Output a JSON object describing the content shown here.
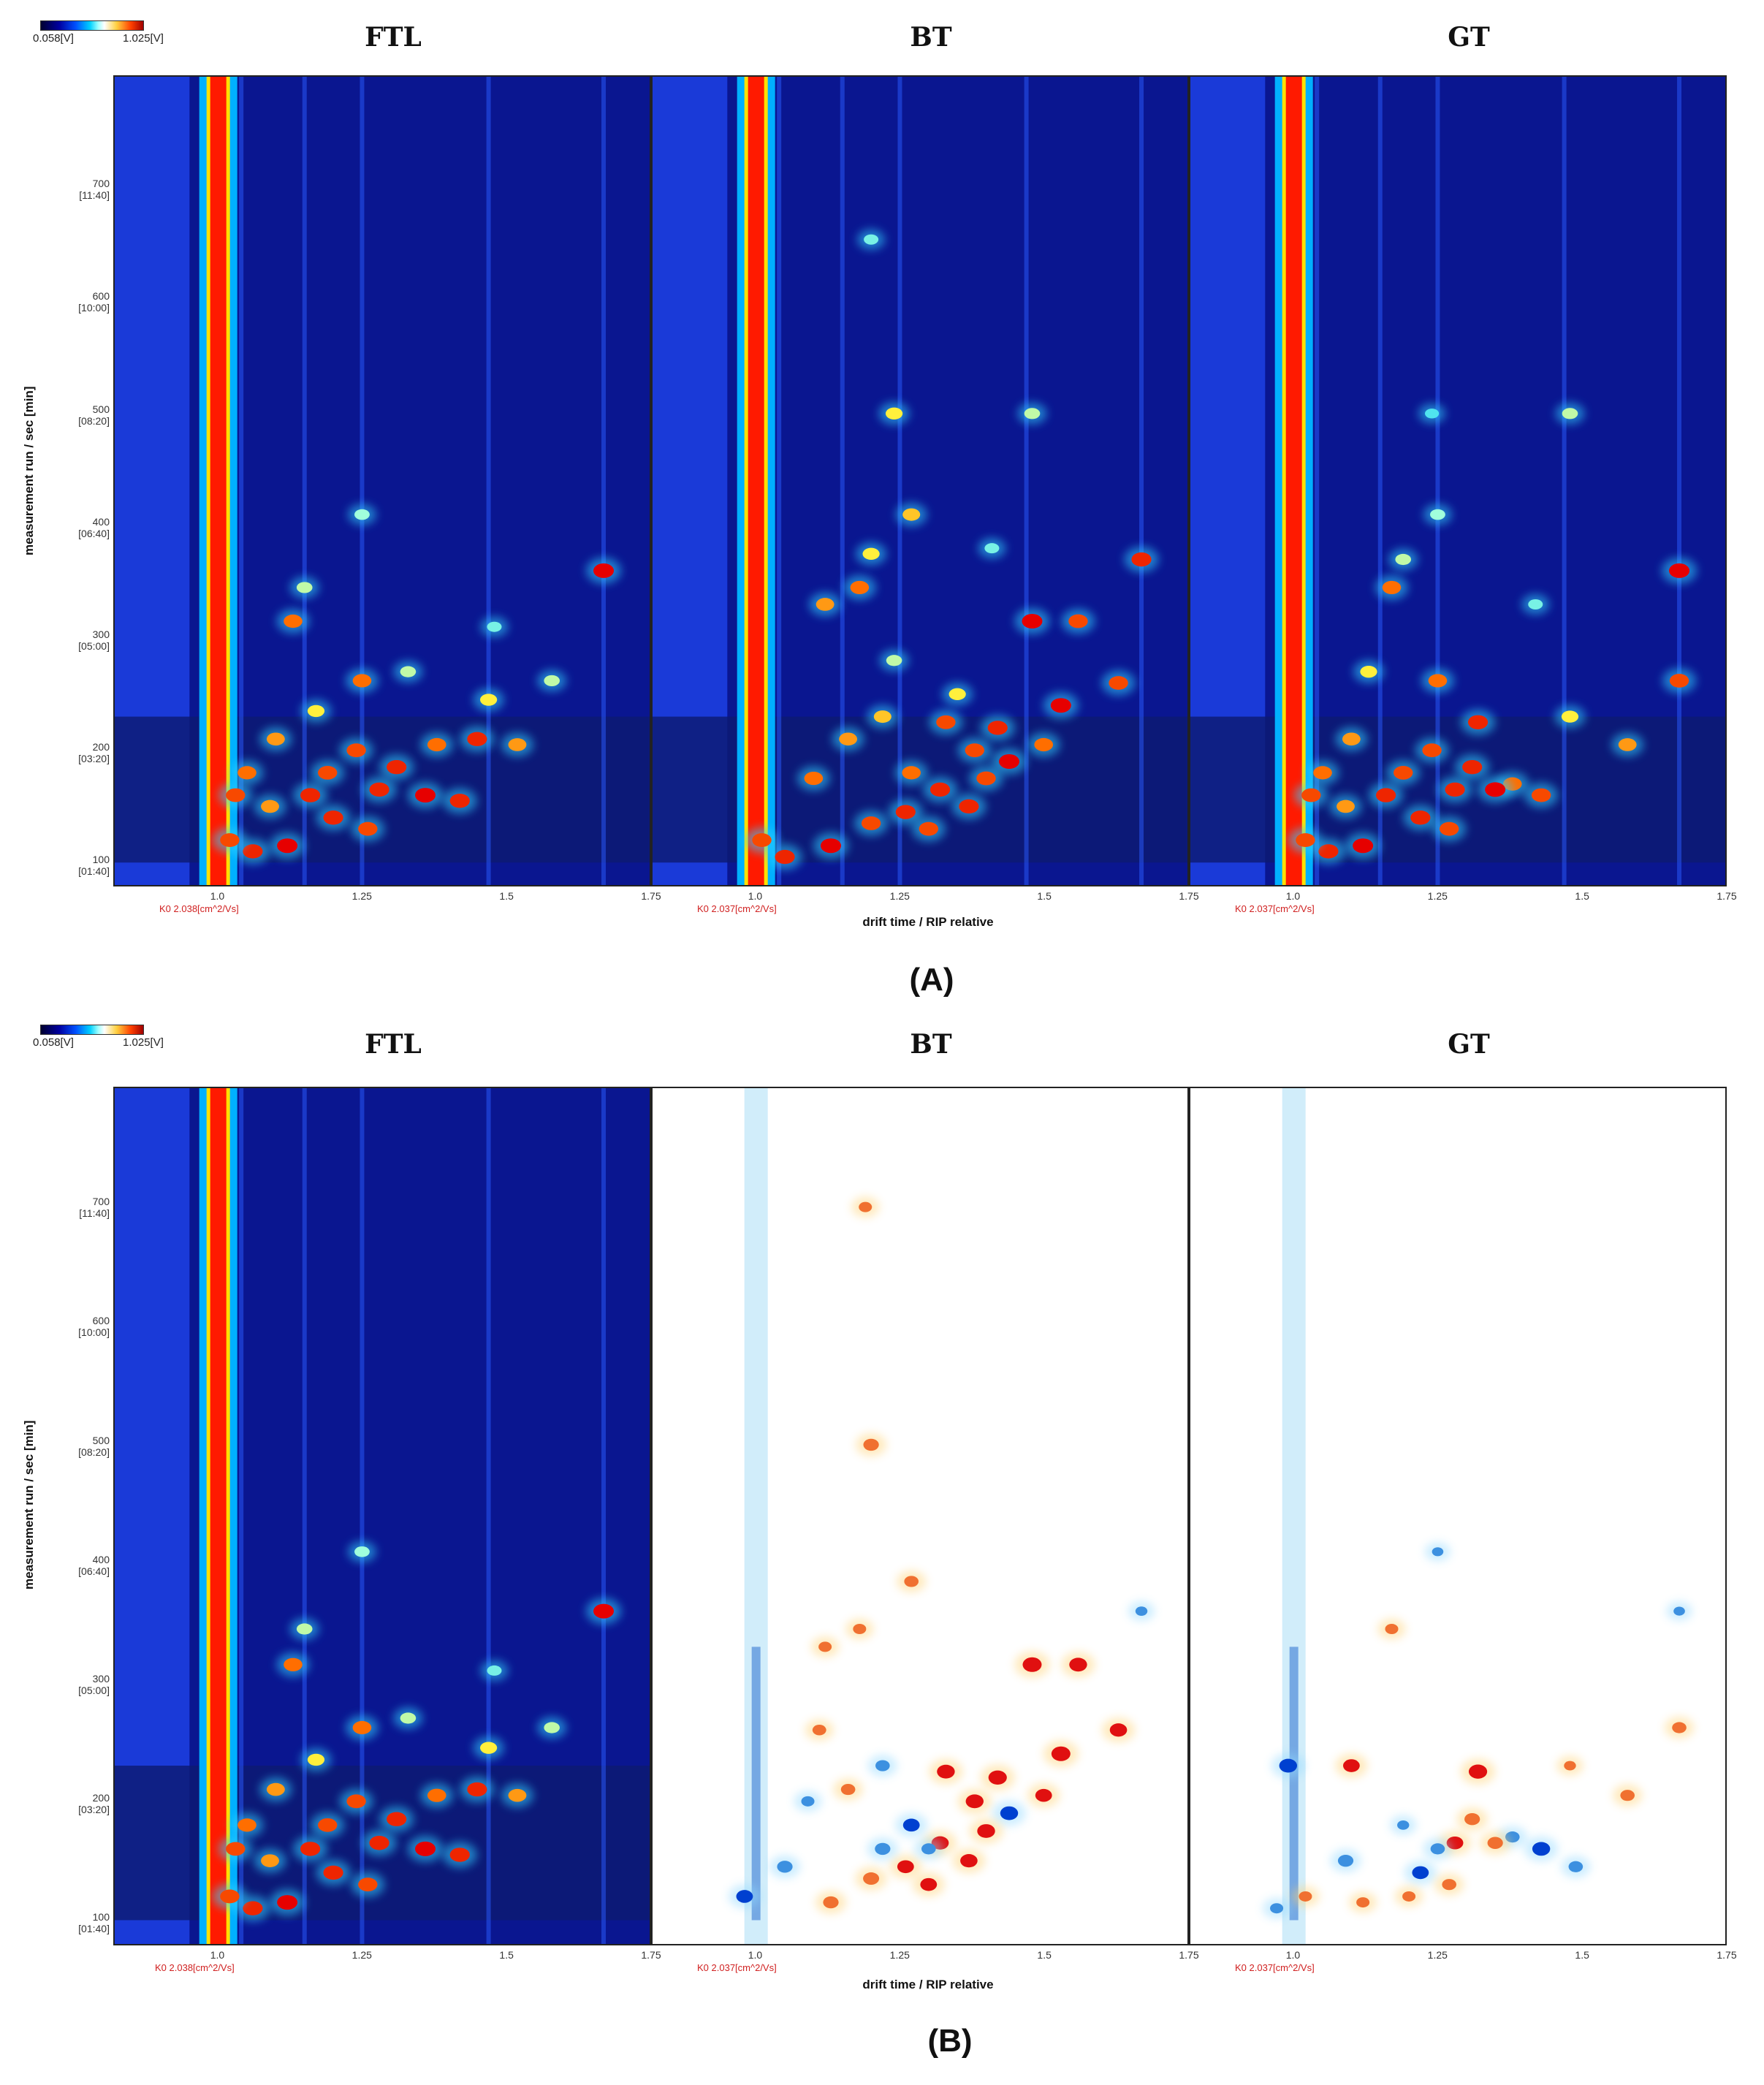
{
  "colorbar": {
    "min_label": "0.058[V]",
    "max_label": "1.025[V]"
  },
  "figures": [
    {
      "label": "(A)",
      "mode": "spectrum",
      "panels": [
        {
          "title": "FTL",
          "ko_label": "K0 2.038[cm^2/Vs]"
        },
        {
          "title": "BT",
          "ko_label": "K0 2.037[cm^2/Vs]"
        },
        {
          "title": "GT",
          "ko_label": "K0 2.037[cm^2/Vs]"
        }
      ]
    },
    {
      "label": "(B)",
      "mode": "difference",
      "panels": [
        {
          "title": "FTL",
          "ko_label": "K0 2.038[cm^2/Vs]"
        },
        {
          "title": "BT",
          "ko_label": "K0 2.037[cm^2/Vs]"
        },
        {
          "title": "GT",
          "ko_label": "K0 2.037[cm^2/Vs]"
        }
      ]
    }
  ],
  "chart_data": {
    "type": "heatmap",
    "xlabel": "drift time / RIP relative",
    "ylabel": "measurement run / sec [min]",
    "xlim": [
      0.82,
      1.75
    ],
    "ylim": [
      80,
      800
    ],
    "x_ticks": [
      "1.0",
      "1.25",
      "1.5",
      "1.75"
    ],
    "y_ticks": [
      {
        "value": 100,
        "label": "100",
        "sub": "[01:40]"
      },
      {
        "value": 200,
        "label": "200",
        "sub": "[03:20]"
      },
      {
        "value": 300,
        "label": "300",
        "sub": "[05:00]"
      },
      {
        "value": 400,
        "label": "400",
        "sub": "[06:40]"
      },
      {
        "value": 500,
        "label": "500",
        "sub": "[08:20]"
      },
      {
        "value": 600,
        "label": "600",
        "sub": "[10:00]"
      },
      {
        "value": 700,
        "label": "700",
        "sub": "[11:40]"
      }
    ],
    "rip_position": 1.0,
    "peaks": {
      "FTL": [
        [
          1.13,
          315,
          0.85
        ],
        [
          1.15,
          345,
          0.6
        ],
        [
          1.25,
          410,
          0.55
        ],
        [
          1.25,
          262,
          0.85
        ],
        [
          1.24,
          200,
          0.9
        ],
        [
          1.19,
          180,
          0.9
        ],
        [
          1.31,
          185,
          0.95
        ],
        [
          1.38,
          205,
          0.85
        ],
        [
          1.45,
          210,
          0.95
        ],
        [
          1.52,
          205,
          0.8
        ],
        [
          1.58,
          262,
          0.6
        ],
        [
          1.67,
          360,
          1.0
        ],
        [
          1.47,
          245,
          0.7
        ],
        [
          1.28,
          165,
          0.95
        ],
        [
          1.36,
          160,
          1.0
        ],
        [
          1.42,
          155,
          0.95
        ],
        [
          1.2,
          140,
          0.95
        ],
        [
          1.26,
          130,
          0.9
        ],
        [
          1.12,
          115,
          1.0
        ],
        [
          1.06,
          110,
          0.95
        ],
        [
          1.02,
          120,
          0.9
        ],
        [
          1.09,
          150,
          0.8
        ],
        [
          1.05,
          180,
          0.85
        ],
        [
          1.1,
          210,
          0.8
        ],
        [
          1.17,
          235,
          0.7
        ],
        [
          1.33,
          270,
          0.6
        ],
        [
          1.48,
          310,
          0.5
        ],
        [
          1.03,
          160,
          0.9
        ],
        [
          1.16,
          160,
          0.95
        ]
      ],
      "BT": [
        [
          1.27,
          410,
          0.75
        ],
        [
          1.24,
          500,
          0.7
        ],
        [
          1.48,
          500,
          0.6
        ],
        [
          1.67,
          370,
          0.95
        ],
        [
          1.2,
          375,
          0.7
        ],
        [
          1.18,
          345,
          0.85
        ],
        [
          1.12,
          330,
          0.8
        ],
        [
          1.48,
          315,
          1.0
        ],
        [
          1.56,
          315,
          0.9
        ],
        [
          1.63,
          260,
          0.9
        ],
        [
          1.53,
          240,
          1.0
        ],
        [
          1.42,
          220,
          0.95
        ],
        [
          1.38,
          200,
          0.9
        ],
        [
          1.5,
          205,
          0.85
        ],
        [
          1.44,
          190,
          1.0
        ],
        [
          1.4,
          175,
          0.9
        ],
        [
          1.32,
          165,
          0.95
        ],
        [
          1.37,
          150,
          0.95
        ],
        [
          1.26,
          145,
          0.95
        ],
        [
          1.3,
          130,
          0.9
        ],
        [
          1.2,
          135,
          0.9
        ],
        [
          1.13,
          115,
          1.0
        ],
        [
          1.05,
          105,
          0.95
        ],
        [
          1.01,
          120,
          0.9
        ],
        [
          1.1,
          175,
          0.85
        ],
        [
          1.16,
          210,
          0.8
        ],
        [
          1.22,
          230,
          0.75
        ],
        [
          1.33,
          225,
          0.9
        ],
        [
          1.27,
          180,
          0.85
        ],
        [
          1.24,
          280,
          0.6
        ],
        [
          1.41,
          380,
          0.5
        ],
        [
          1.2,
          655,
          0.5
        ],
        [
          1.35,
          250,
          0.7
        ]
      ],
      "GT": [
        [
          1.17,
          345,
          0.85
        ],
        [
          1.19,
          370,
          0.6
        ],
        [
          1.25,
          410,
          0.55
        ],
        [
          1.24,
          500,
          0.45
        ],
        [
          1.48,
          500,
          0.6
        ],
        [
          1.67,
          360,
          1.0
        ],
        [
          1.67,
          262,
          0.9
        ],
        [
          1.25,
          262,
          0.85
        ],
        [
          1.32,
          225,
          0.95
        ],
        [
          1.24,
          200,
          0.9
        ],
        [
          1.19,
          180,
          0.9
        ],
        [
          1.31,
          185,
          0.95
        ],
        [
          1.38,
          170,
          0.85
        ],
        [
          1.43,
          160,
          0.9
        ],
        [
          1.58,
          205,
          0.8
        ],
        [
          1.48,
          230,
          0.7
        ],
        [
          1.28,
          165,
          0.95
        ],
        [
          1.35,
          165,
          1.0
        ],
        [
          1.22,
          140,
          0.95
        ],
        [
          1.27,
          130,
          0.9
        ],
        [
          1.12,
          115,
          1.0
        ],
        [
          1.06,
          110,
          0.95
        ],
        [
          1.02,
          120,
          0.9
        ],
        [
          1.09,
          150,
          0.8
        ],
        [
          1.05,
          180,
          0.85
        ],
        [
          1.1,
          210,
          0.8
        ],
        [
          1.13,
          270,
          0.7
        ],
        [
          1.42,
          330,
          0.5
        ],
        [
          1.03,
          160,
          0.9
        ],
        [
          1.16,
          160,
          0.95
        ]
      ]
    },
    "difference_peaks": {
      "BT": [
        [
          1.19,
          700,
          0.5
        ],
        [
          1.2,
          500,
          0.7
        ],
        [
          1.27,
          385,
          0.6
        ],
        [
          1.48,
          315,
          1.0
        ],
        [
          1.56,
          315,
          0.9
        ],
        [
          1.63,
          260,
          0.85
        ],
        [
          1.53,
          240,
          1.0
        ],
        [
          1.42,
          220,
          0.95
        ],
        [
          1.38,
          200,
          0.9
        ],
        [
          1.5,
          205,
          0.8
        ],
        [
          1.44,
          190,
          -0.9
        ],
        [
          1.4,
          175,
          0.9
        ],
        [
          1.32,
          165,
          0.85
        ],
        [
          1.37,
          150,
          0.85
        ],
        [
          1.26,
          145,
          0.8
        ],
        [
          1.3,
          130,
          0.8
        ],
        [
          1.2,
          135,
          0.75
        ],
        [
          1.13,
          115,
          0.7
        ],
        [
          1.16,
          210,
          0.6
        ],
        [
          1.22,
          230,
          -0.6
        ],
        [
          1.33,
          225,
          0.9
        ],
        [
          1.27,
          180,
          -0.8
        ],
        [
          1.12,
          330,
          0.5
        ],
        [
          1.18,
          345,
          0.5
        ],
        [
          1.11,
          260,
          0.55
        ],
        [
          1.22,
          160,
          -0.7
        ],
        [
          1.05,
          145,
          -0.7
        ],
        [
          0.98,
          120,
          -0.8
        ],
        [
          1.3,
          160,
          -0.6
        ],
        [
          1.67,
          360,
          -0.4
        ],
        [
          1.09,
          200,
          -0.5
        ]
      ],
      "GT": [
        [
          1.17,
          345,
          0.5
        ],
        [
          1.25,
          410,
          -0.35
        ],
        [
          1.67,
          360,
          -0.35
        ],
        [
          1.67,
          262,
          0.6
        ],
        [
          1.32,
          225,
          0.95
        ],
        [
          1.19,
          180,
          -0.4
        ],
        [
          1.31,
          185,
          0.7
        ],
        [
          1.38,
          170,
          -0.6
        ],
        [
          1.43,
          160,
          -0.9
        ],
        [
          1.58,
          205,
          0.6
        ],
        [
          1.48,
          230,
          0.4
        ],
        [
          1.28,
          165,
          0.8
        ],
        [
          1.35,
          165,
          0.7
        ],
        [
          1.22,
          140,
          -0.8
        ],
        [
          1.27,
          130,
          0.6
        ],
        [
          1.12,
          115,
          0.5
        ],
        [
          1.1,
          230,
          0.8
        ],
        [
          0.99,
          230,
          -0.9
        ],
        [
          1.02,
          120,
          0.5
        ],
        [
          1.09,
          150,
          -0.7
        ],
        [
          1.25,
          160,
          -0.6
        ],
        [
          1.49,
          145,
          -0.6
        ],
        [
          0.97,
          110,
          -0.5
        ],
        [
          1.2,
          120,
          0.5
        ]
      ]
    }
  }
}
